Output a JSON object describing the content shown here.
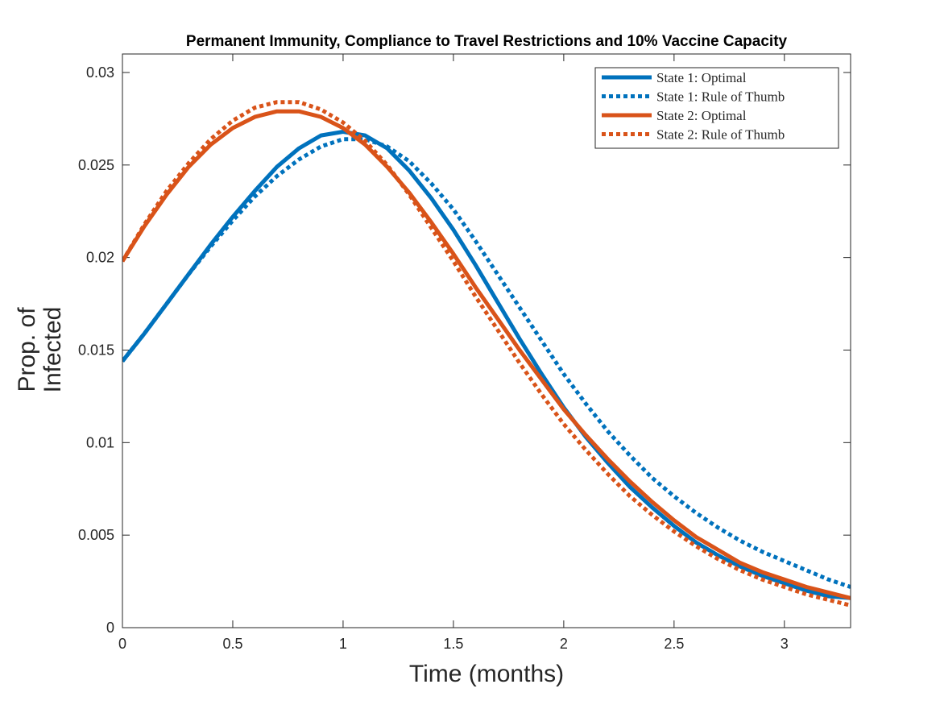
{
  "chart_data": {
    "type": "line",
    "title": "Permanent Immunity, Compliance to Travel Restrictions and 10% Vaccine Capacity",
    "xlabel": "Time (months)",
    "ylabel_lines": [
      "Prop. of",
      "Infected"
    ],
    "xlim": [
      0,
      3.3
    ],
    "ylim": [
      0,
      0.031
    ],
    "xticks": [
      0,
      0.5,
      1,
      1.5,
      2,
      2.5,
      3
    ],
    "xtick_labels": [
      "0",
      "0.5",
      "1",
      "1.5",
      "2",
      "2.5",
      "3"
    ],
    "yticks": [
      0,
      0.005,
      0.01,
      0.015,
      0.02,
      0.025,
      0.03
    ],
    "ytick_labels": [
      "0",
      "0.005",
      "0.01",
      "0.015",
      "0.02",
      "0.025",
      "0.03"
    ],
    "grid": false,
    "legend_position": "top-right",
    "series": [
      {
        "name": "State 1: Optimal",
        "color": "#0072BD",
        "style": "solid",
        "x": [
          0,
          0.1,
          0.2,
          0.3,
          0.4,
          0.5,
          0.6,
          0.7,
          0.8,
          0.9,
          1.0,
          1.1,
          1.2,
          1.3,
          1.4,
          1.5,
          1.6,
          1.7,
          1.8,
          1.9,
          2.0,
          2.1,
          2.2,
          2.3,
          2.4,
          2.5,
          2.6,
          2.7,
          2.8,
          2.9,
          3.0,
          3.1,
          3.2,
          3.3
        ],
        "y": [
          0.0144,
          0.0159,
          0.0175,
          0.0191,
          0.0207,
          0.0222,
          0.0236,
          0.0249,
          0.0259,
          0.0266,
          0.0268,
          0.0266,
          0.0259,
          0.0247,
          0.0232,
          0.0215,
          0.0196,
          0.0176,
          0.0156,
          0.0137,
          0.0119,
          0.0103,
          0.0089,
          0.0076,
          0.0065,
          0.0055,
          0.0046,
          0.0039,
          0.0033,
          0.0028,
          0.0024,
          0.002,
          0.0017,
          0.0016
        ]
      },
      {
        "name": "State 1: Rule of Thumb",
        "color": "#0072BD",
        "style": "dotted",
        "x": [
          0,
          0.1,
          0.2,
          0.3,
          0.4,
          0.5,
          0.6,
          0.7,
          0.8,
          0.9,
          1.0,
          1.1,
          1.2,
          1.3,
          1.4,
          1.5,
          1.6,
          1.7,
          1.8,
          1.9,
          2.0,
          2.1,
          2.2,
          2.3,
          2.4,
          2.5,
          2.6,
          2.7,
          2.8,
          2.9,
          3.0,
          3.1,
          3.2,
          3.3
        ],
        "y": [
          0.0144,
          0.0159,
          0.0175,
          0.0191,
          0.0206,
          0.022,
          0.0233,
          0.0244,
          0.0253,
          0.026,
          0.0264,
          0.0264,
          0.026,
          0.0252,
          0.024,
          0.0226,
          0.0209,
          0.0191,
          0.0173,
          0.0155,
          0.0137,
          0.0121,
          0.0106,
          0.0093,
          0.0081,
          0.0071,
          0.0062,
          0.0054,
          0.0047,
          0.0041,
          0.0036,
          0.0031,
          0.0026,
          0.0022
        ]
      },
      {
        "name": "State 2: Optimal",
        "color": "#D95319",
        "style": "solid",
        "x": [
          0,
          0.1,
          0.2,
          0.3,
          0.4,
          0.5,
          0.6,
          0.7,
          0.8,
          0.9,
          1.0,
          1.1,
          1.2,
          1.3,
          1.4,
          1.5,
          1.6,
          1.7,
          1.8,
          1.9,
          2.0,
          2.1,
          2.2,
          2.3,
          2.4,
          2.5,
          2.6,
          2.7,
          2.8,
          2.9,
          3.0,
          3.1,
          3.2,
          3.3
        ],
        "y": [
          0.0198,
          0.0217,
          0.0234,
          0.0249,
          0.0261,
          0.027,
          0.0276,
          0.0279,
          0.0279,
          0.0276,
          0.027,
          0.0261,
          0.0249,
          0.0235,
          0.0219,
          0.0202,
          0.0184,
          0.0167,
          0.015,
          0.0134,
          0.0118,
          0.0104,
          0.0091,
          0.0079,
          0.0068,
          0.0058,
          0.0049,
          0.0042,
          0.0035,
          0.003,
          0.0026,
          0.0022,
          0.0019,
          0.0016
        ]
      },
      {
        "name": "State 2: Rule of Thumb",
        "color": "#D95319",
        "style": "dotted",
        "x": [
          0,
          0.1,
          0.2,
          0.3,
          0.4,
          0.5,
          0.6,
          0.7,
          0.8,
          0.9,
          1.0,
          1.1,
          1.2,
          1.3,
          1.4,
          1.5,
          1.6,
          1.7,
          1.8,
          1.9,
          2.0,
          2.1,
          2.2,
          2.3,
          2.4,
          2.5,
          2.6,
          2.7,
          2.8,
          2.9,
          3.0,
          3.1,
          3.2,
          3.3
        ],
        "y": [
          0.0198,
          0.0218,
          0.0236,
          0.0251,
          0.0264,
          0.0274,
          0.0281,
          0.0284,
          0.0284,
          0.028,
          0.0273,
          0.0263,
          0.025,
          0.0234,
          0.0216,
          0.0198,
          0.0179,
          0.0161,
          0.0143,
          0.0126,
          0.011,
          0.0096,
          0.0083,
          0.0071,
          0.0061,
          0.0052,
          0.0044,
          0.0037,
          0.0031,
          0.0026,
          0.0022,
          0.0018,
          0.0015,
          0.0012
        ]
      }
    ]
  }
}
